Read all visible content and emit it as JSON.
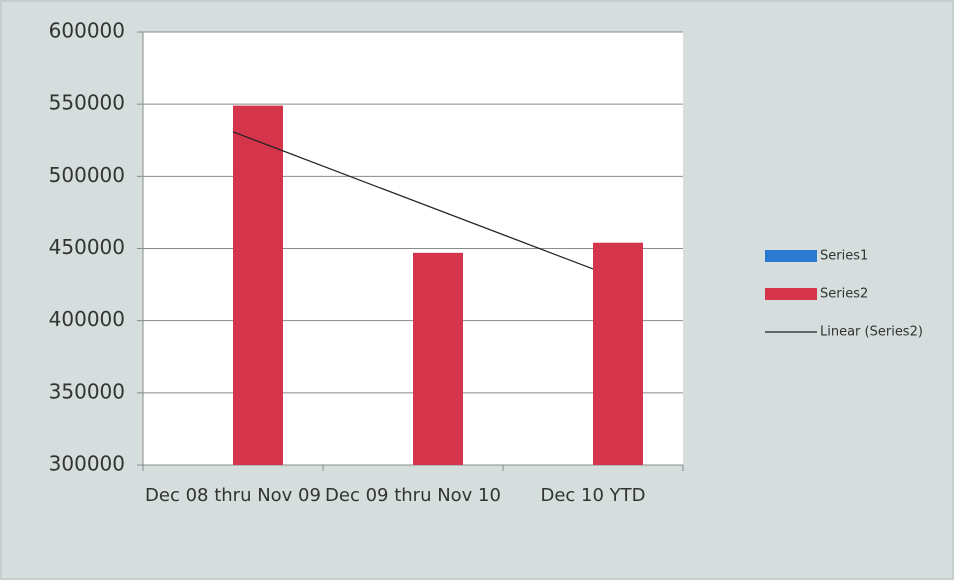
{
  "chart_data": {
    "type": "bar",
    "categories": [
      "Dec 08 thru Nov 09",
      "Dec 09 thru Nov 10",
      "Dec 10 YTD"
    ],
    "series": [
      {
        "name": "Series1",
        "color": "#2b7bd0",
        "values": [
          null,
          null,
          null
        ]
      },
      {
        "name": "Series2",
        "color": "#d4354b",
        "values": [
          549000,
          447000,
          454000
        ]
      }
    ],
    "trendline": {
      "name": "Linear (Series2)",
      "color": "#222222"
    },
    "ylim": [
      300000,
      600000
    ],
    "yticks": [
      300000,
      350000,
      400000,
      450000,
      500000,
      550000,
      600000
    ],
    "grid": true,
    "legend": "right"
  }
}
